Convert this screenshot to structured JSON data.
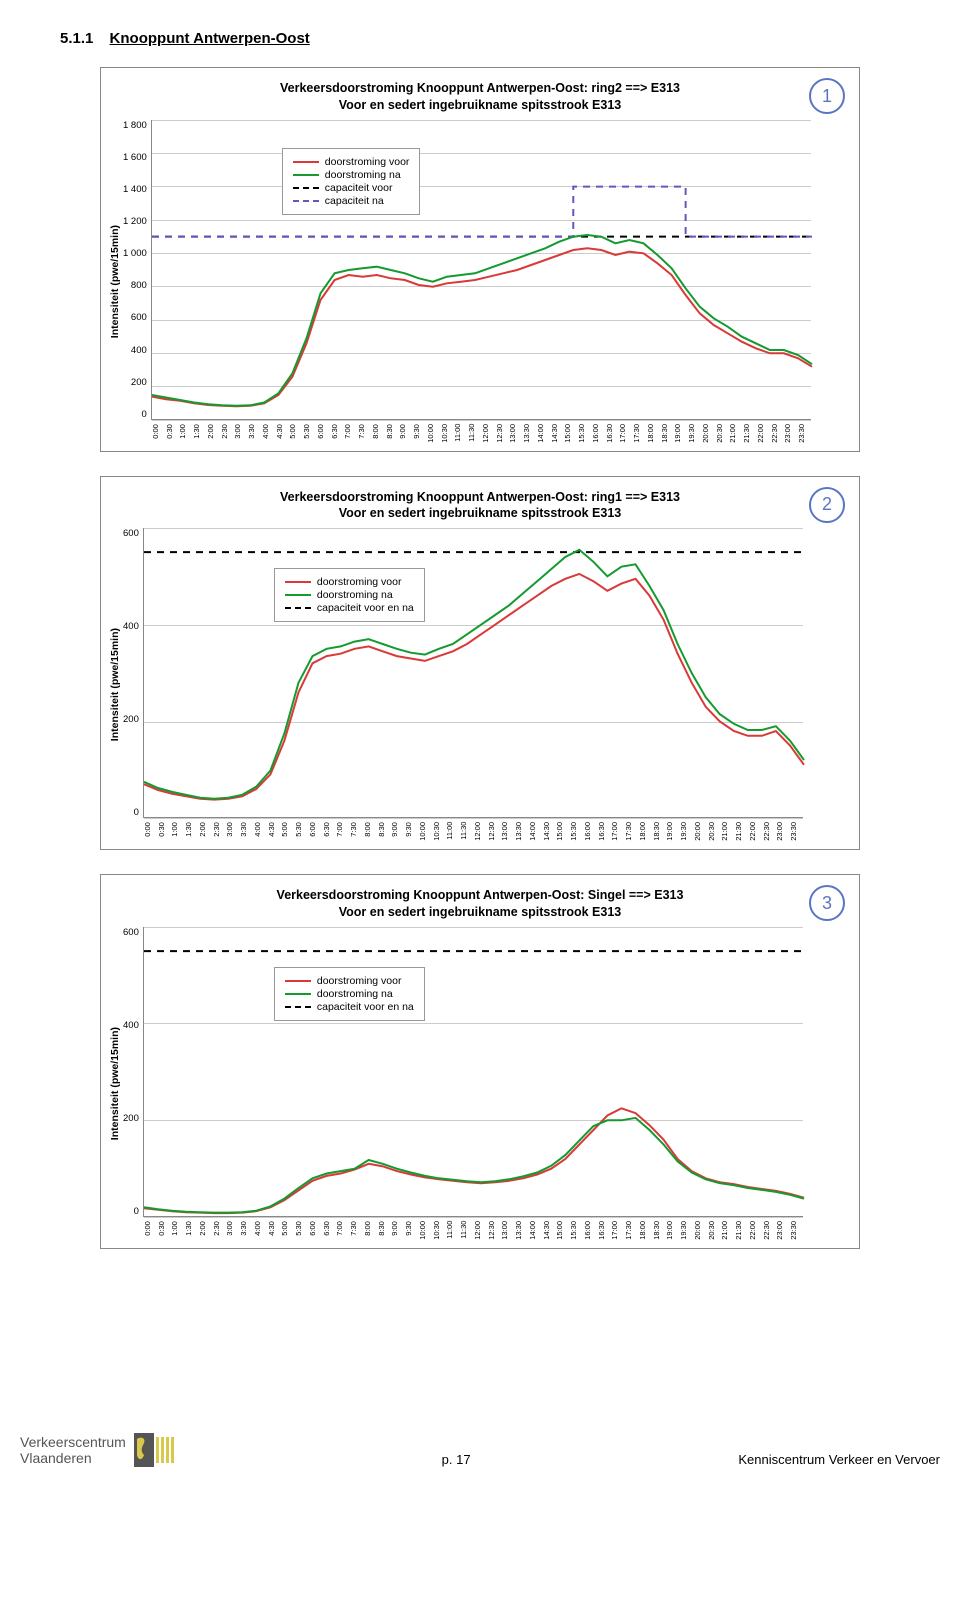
{
  "section": {
    "number": "5.1.1",
    "title": "Knooppunt Antwerpen-Oost"
  },
  "time_ticks": [
    "0:00",
    "0:30",
    "1:00",
    "1:30",
    "2:00",
    "2:30",
    "3:00",
    "3:30",
    "4:00",
    "4:30",
    "5:00",
    "5:30",
    "6:00",
    "6:30",
    "7:00",
    "7:30",
    "8:00",
    "8:30",
    "9:00",
    "9:30",
    "10:00",
    "10:30",
    "11:00",
    "11:30",
    "12:00",
    "12:30",
    "13:00",
    "13:30",
    "14:00",
    "14:30",
    "15:00",
    "15:30",
    "16:00",
    "16:30",
    "17:00",
    "17:30",
    "18:00",
    "18:30",
    "19:00",
    "19:30",
    "20:00",
    "20:30",
    "21:00",
    "21:30",
    "22:00",
    "22:30",
    "23:00",
    "23:30"
  ],
  "colors": {
    "red": "#d93939",
    "green": "#149a2e",
    "dash_black": "#000000",
    "dash_purple": "#6456bd",
    "grid": "#cccccc",
    "border": "#888888",
    "badge": "#5b75c6"
  },
  "chart1": {
    "badge": "1",
    "title_l1": "Verkeersdoorstroming Knooppunt Antwerpen-Oost: ring2 ==> E313",
    "title_l2": "Voor en sedert ingebruikname spitsstrook E313",
    "ylabel": "Intensiteit (pwe/15min)",
    "yticks": [
      "1 800",
      "1 600",
      "1 400",
      "1 200",
      "1 000",
      "800",
      "600",
      "400",
      "200",
      "0"
    ],
    "ymax": 1800,
    "legend": {
      "s1": "doorstroming voor",
      "s2": "doorstroming na",
      "s3": "capaciteit voor",
      "s4": "capaciteit na"
    },
    "capacity_voor": 1100,
    "capacity_na_start_idx": 30,
    "capacity_na_end_idx": 38,
    "capacity_na_val": 1400,
    "series_voor": [
      140,
      125,
      115,
      100,
      90,
      85,
      82,
      85,
      100,
      150,
      260,
      460,
      720,
      840,
      870,
      860,
      870,
      850,
      840,
      810,
      800,
      820,
      830,
      840,
      860,
      880,
      900,
      930,
      960,
      990,
      1020,
      1030,
      1020,
      990,
      1010,
      1000,
      940,
      870,
      750,
      640,
      570,
      520,
      470,
      430,
      400,
      400,
      370,
      320
    ],
    "series_na": [
      150,
      135,
      120,
      105,
      95,
      88,
      85,
      88,
      105,
      160,
      280,
      490,
      760,
      880,
      900,
      910,
      920,
      900,
      880,
      850,
      830,
      860,
      870,
      880,
      910,
      940,
      970,
      1000,
      1030,
      1070,
      1100,
      1110,
      1100,
      1060,
      1080,
      1060,
      990,
      910,
      790,
      680,
      610,
      560,
      500,
      460,
      420,
      420,
      390,
      335
    ]
  },
  "chart2": {
    "badge": "2",
    "title_l1": "Verkeersdoorstroming Knooppunt Antwerpen-Oost: ring1 ==> E313",
    "title_l2": "Voor en sedert ingebruikname spitsstrook E313",
    "ylabel": "Intensiteit (pwe/15min)",
    "yticks": [
      "600",
      "400",
      "200",
      "0"
    ],
    "ymax": 600,
    "legend": {
      "s1": "doorstroming voor",
      "s2": "doorstroming na",
      "s3": "capaciteit voor en na"
    },
    "capacity": 550,
    "series_voor": [
      70,
      58,
      50,
      45,
      40,
      38,
      40,
      45,
      60,
      90,
      160,
      260,
      320,
      335,
      340,
      350,
      355,
      345,
      335,
      330,
      325,
      335,
      345,
      360,
      380,
      400,
      420,
      440,
      460,
      480,
      495,
      505,
      490,
      470,
      485,
      495,
      460,
      410,
      340,
      280,
      230,
      200,
      180,
      170,
      170,
      180,
      150,
      110
    ],
    "series_na": [
      75,
      62,
      54,
      48,
      42,
      40,
      42,
      48,
      65,
      98,
      175,
      280,
      335,
      350,
      355,
      365,
      370,
      360,
      350,
      342,
      338,
      350,
      360,
      380,
      400,
      420,
      440,
      465,
      490,
      515,
      540,
      555,
      530,
      500,
      520,
      525,
      480,
      430,
      360,
      300,
      250,
      215,
      195,
      182,
      182,
      190,
      160,
      120
    ]
  },
  "chart3": {
    "badge": "3",
    "title_l1": "Verkeersdoorstroming Knooppunt Antwerpen-Oost: Singel ==> E313",
    "title_l2": "Voor en sedert ingebruikname spitsstrook E313",
    "ylabel": "Intensiteit (pwe/15min)",
    "yticks": [
      "600",
      "400",
      "200",
      "0"
    ],
    "ymax": 600,
    "legend": {
      "s1": "doorstroming voor",
      "s2": "doorstroming na",
      "s3": "capaciteit voor en na"
    },
    "capacity": 550,
    "series_voor": [
      18,
      15,
      12,
      10,
      9,
      8,
      8,
      9,
      12,
      20,
      35,
      55,
      75,
      85,
      90,
      98,
      110,
      105,
      95,
      88,
      82,
      78,
      75,
      72,
      70,
      72,
      75,
      80,
      88,
      100,
      120,
      150,
      180,
      210,
      225,
      215,
      190,
      160,
      120,
      95,
      80,
      72,
      68,
      62,
      58,
      54,
      48,
      40
    ],
    "series_na": [
      20,
      16,
      13,
      11,
      10,
      9,
      9,
      10,
      13,
      22,
      38,
      60,
      80,
      90,
      95,
      100,
      118,
      110,
      100,
      92,
      85,
      80,
      77,
      74,
      72,
      74,
      78,
      84,
      92,
      106,
      128,
      158,
      188,
      200,
      200,
      205,
      180,
      150,
      115,
      92,
      78,
      70,
      66,
      60,
      56,
      52,
      46,
      38
    ]
  },
  "footer": {
    "logo_l1": "Verkeerscentrum",
    "logo_l2": "Vlaanderen",
    "page": "p. 17",
    "org": "Kenniscentrum Verkeer en Vervoer"
  }
}
